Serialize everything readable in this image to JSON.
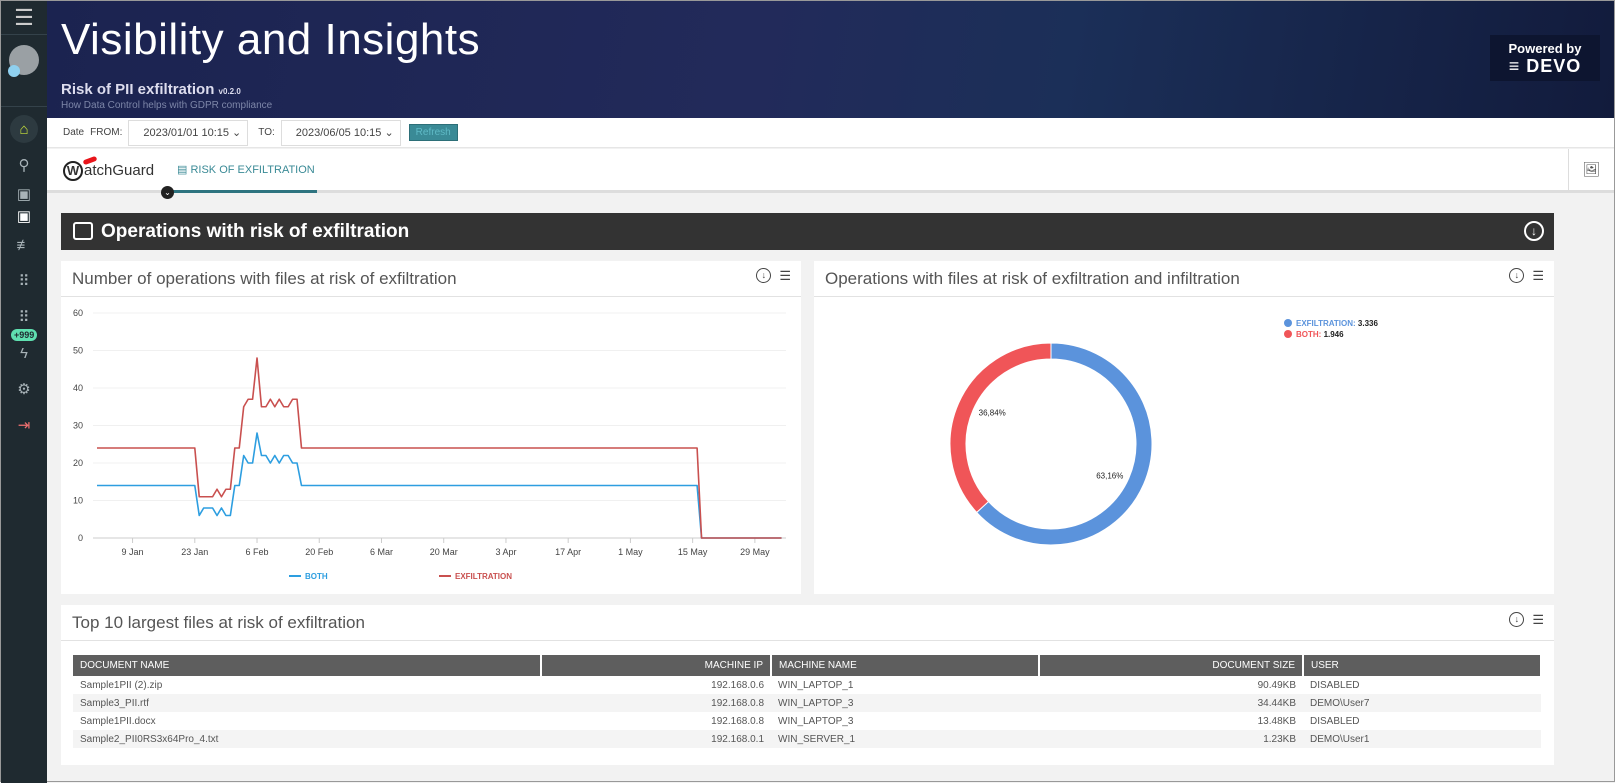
{
  "sidebar": {
    "items": [
      {
        "icon": "menu-icon"
      },
      {
        "icon": "home-icon"
      },
      {
        "icon": "search-icon"
      },
      {
        "icon": "dashboard-icon"
      },
      {
        "icon": "dashboard-active-icon"
      },
      {
        "icon": "sliders-icon"
      },
      {
        "icon": "grid-icon"
      },
      {
        "icon": "grid-icon"
      },
      {
        "icon": "bolt-icon",
        "badge": "+999"
      },
      {
        "icon": "gear-icon"
      },
      {
        "icon": "logout-icon"
      }
    ]
  },
  "header": {
    "title": "Visibility and Insights",
    "subtitle": "Risk of PII exfiltration",
    "version": "v0.2.0",
    "description": "How Data Control helps with GDPR compliance",
    "powered_by": "Powered by",
    "brand": "DEVO"
  },
  "datebar": {
    "date_label": "Date",
    "from_label": "FROM:",
    "from_value": "2023/01/01 10:15",
    "to_label": "TO:",
    "to_value": "2023/06/05 10:15",
    "refresh": "Refresh"
  },
  "tabs": {
    "logo": "WatchGuard",
    "active_tab": "RISK OF EXFILTRATION"
  },
  "section": {
    "title": "Operations with risk of exfiltration"
  },
  "line_panel": {
    "title": "Number of operations with files at risk of exfiltration"
  },
  "pie_panel": {
    "title": "Operations with files at risk of exfiltration and infiltration"
  },
  "table_panel": {
    "title": "Top 10 largest files at risk of exfiltration",
    "columns": [
      "DOCUMENT NAME",
      "MACHINE IP",
      "MACHINE NAME",
      "DOCUMENT SIZE",
      "USER"
    ],
    "rows": [
      [
        "Sample1PII (2).zip",
        "192.168.0.6",
        "WIN_LAPTOP_1",
        "90.49KB",
        "DISABLED"
      ],
      [
        "Sample3_PII.rtf",
        "192.168.0.8",
        "WIN_LAPTOP_3",
        "34.44KB",
        "DEMO\\User7"
      ],
      [
        "Sample1PII.docx",
        "192.168.0.8",
        "WIN_LAPTOP_3",
        "13.48KB",
        "DISABLED"
      ],
      [
        "Sample2_PII0RS3x64Pro_4.txt",
        "192.168.0.1",
        "WIN_SERVER_1",
        "1.23KB",
        "DEMO\\User1"
      ]
    ]
  },
  "chart_data": [
    {
      "type": "line",
      "title": "Number of operations with files at risk of exfiltration",
      "xlabel": "",
      "ylabel": "",
      "ylim": [
        0,
        60
      ],
      "yticks": [
        0,
        10,
        20,
        30,
        40,
        50,
        60
      ],
      "xticks": [
        "9 Jan",
        "23 Jan",
        "6 Feb",
        "20 Feb",
        "6 Mar",
        "20 Mar",
        "3 Apr",
        "17 Apr",
        "1 May",
        "15 May",
        "29 May"
      ],
      "xtick_dates": [
        "2023-01-09",
        "2023-01-23",
        "2023-02-06",
        "2023-02-20",
        "2023-03-06",
        "2023-03-20",
        "2023-04-03",
        "2023-04-17",
        "2023-05-01",
        "2023-05-15",
        "2023-05-29"
      ],
      "xlim": [
        "2023-01-01",
        "2023-06-05"
      ],
      "grid": true,
      "legend": "bottom",
      "series": [
        {
          "name": "BOTH",
          "color": "#2d9ee0",
          "points": [
            [
              "2023-01-01",
              14
            ],
            [
              "2023-01-23",
              14
            ],
            [
              "2023-01-24",
              6
            ],
            [
              "2023-01-25",
              8
            ],
            [
              "2023-01-27",
              8
            ],
            [
              "2023-01-28",
              6
            ],
            [
              "2023-01-29",
              8
            ],
            [
              "2023-01-30",
              6
            ],
            [
              "2023-01-31",
              6
            ],
            [
              "2023-02-01",
              14
            ],
            [
              "2023-02-02",
              14
            ],
            [
              "2023-02-03",
              22
            ],
            [
              "2023-02-04",
              20
            ],
            [
              "2023-02-05",
              20
            ],
            [
              "2023-02-06",
              28
            ],
            [
              "2023-02-07",
              22
            ],
            [
              "2023-02-08",
              22
            ],
            [
              "2023-02-09",
              20
            ],
            [
              "2023-02-10",
              22
            ],
            [
              "2023-02-11",
              20
            ],
            [
              "2023-02-12",
              22
            ],
            [
              "2023-02-13",
              22
            ],
            [
              "2023-02-14",
              20
            ],
            [
              "2023-02-15",
              20
            ],
            [
              "2023-02-16",
              14
            ],
            [
              "2023-05-16",
              14
            ],
            [
              "2023-05-17",
              0
            ],
            [
              "2023-06-04",
              0
            ]
          ]
        },
        {
          "name": "EXFILTRATION",
          "color": "#c9504f",
          "points": [
            [
              "2023-01-01",
              24
            ],
            [
              "2023-01-23",
              24
            ],
            [
              "2023-01-24",
              11
            ],
            [
              "2023-01-27",
              11
            ],
            [
              "2023-01-28",
              13
            ],
            [
              "2023-01-29",
              11
            ],
            [
              "2023-01-30",
              13
            ],
            [
              "2023-01-31",
              13
            ],
            [
              "2023-02-01",
              24
            ],
            [
              "2023-02-02",
              24
            ],
            [
              "2023-02-03",
              35
            ],
            [
              "2023-02-04",
              37
            ],
            [
              "2023-02-05",
              37
            ],
            [
              "2023-02-06",
              48
            ],
            [
              "2023-02-07",
              35
            ],
            [
              "2023-02-08",
              35
            ],
            [
              "2023-02-09",
              37
            ],
            [
              "2023-02-10",
              35
            ],
            [
              "2023-02-11",
              37
            ],
            [
              "2023-02-12",
              35
            ],
            [
              "2023-02-13",
              35
            ],
            [
              "2023-02-14",
              37
            ],
            [
              "2023-02-15",
              37
            ],
            [
              "2023-02-16",
              24
            ],
            [
              "2023-05-16",
              24
            ],
            [
              "2023-05-17",
              0
            ],
            [
              "2023-06-04",
              0
            ]
          ]
        }
      ]
    },
    {
      "type": "pie",
      "title": "Operations with files at risk of exfiltration and infiltration",
      "legend": "top-right",
      "slices": [
        {
          "name": "EXFILTRATION",
          "value": 3336,
          "value_label": "3.336",
          "percent_label": "63,16%",
          "color": "#5b93dc"
        },
        {
          "name": "BOTH",
          "value": 1946,
          "value_label": "1.946",
          "percent_label": "36,84%",
          "color": "#f05558"
        }
      ]
    }
  ]
}
